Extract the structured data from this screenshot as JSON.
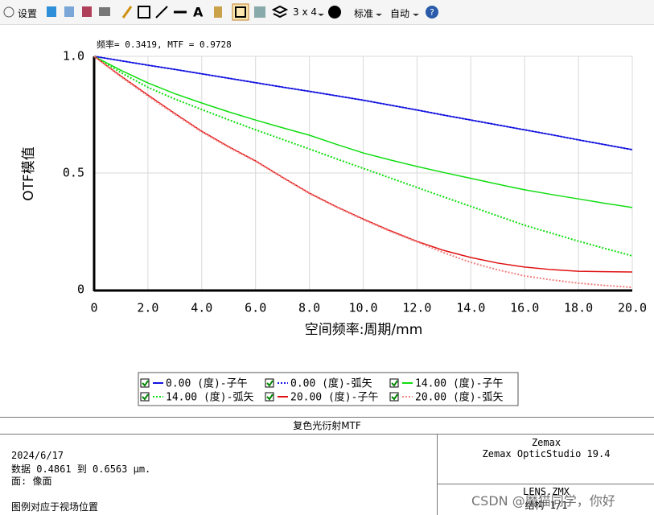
{
  "toolbar": {
    "settings": "设置",
    "layout": "3 x 4",
    "style": "标准",
    "scale": "自动"
  },
  "chart_data": {
    "type": "line",
    "annotation": "频率= 0.3419, MTF = 0.9728",
    "xlabel": "空间频率:周期/mm",
    "ylabel": "OTF模值",
    "xlim": [
      0,
      20
    ],
    "ylim": [
      0,
      1
    ],
    "xticks": [
      0,
      {
        "value": 2,
        "label": "2.0"
      },
      {
        "value": 4,
        "label": "4.0"
      },
      {
        "value": 6,
        "label": "6.0"
      },
      {
        "value": 8,
        "label": "8.0"
      },
      {
        "value": 10,
        "label": "10.0"
      },
      {
        "value": 12,
        "label": "12.0"
      },
      {
        "value": 14,
        "label": "14.0"
      },
      {
        "value": 16,
        "label": "16.0"
      },
      {
        "value": 18,
        "label": "18.0"
      },
      {
        "value": 20,
        "label": "20.0"
      }
    ],
    "yticks": [
      0,
      0.5,
      {
        "value": 1,
        "label": "1.0"
      }
    ],
    "grid": true,
    "x": [
      0,
      1,
      2,
      3,
      4,
      5,
      6,
      7,
      8,
      9,
      10,
      11,
      12,
      13,
      14,
      15,
      16,
      17,
      18,
      19,
      20
    ],
    "series": [
      {
        "name": "0.00 (度)-子午",
        "color": "#1414e0",
        "style": "solid",
        "values": [
          1.0,
          0.981,
          0.962,
          0.944,
          0.925,
          0.906,
          0.887,
          0.868,
          0.85,
          0.831,
          0.812,
          0.791,
          0.77,
          0.748,
          0.727,
          0.706,
          0.685,
          0.664,
          0.642,
          0.621,
          0.6
        ]
      },
      {
        "name": "0.00 (度)-弧矢",
        "color": "#1414e0",
        "style": "dotted",
        "values": [
          1.0,
          0.981,
          0.962,
          0.944,
          0.925,
          0.906,
          0.887,
          0.868,
          0.85,
          0.831,
          0.812,
          0.791,
          0.77,
          0.748,
          0.727,
          0.706,
          0.685,
          0.664,
          0.642,
          0.621,
          0.6
        ]
      },
      {
        "name": "14.00 (度)-子午",
        "color": "#10dd10",
        "style": "solid",
        "values": [
          1.0,
          0.94,
          0.886,
          0.84,
          0.8,
          0.762,
          0.727,
          0.694,
          0.662,
          0.623,
          0.586,
          0.556,
          0.528,
          0.502,
          0.477,
          0.452,
          0.428,
          0.408,
          0.389,
          0.37,
          0.352
        ]
      },
      {
        "name": "14.00 (度)-弧矢",
        "color": "#10dd10",
        "style": "dotted",
        "values": [
          1.0,
          0.93,
          0.867,
          0.817,
          0.772,
          0.728,
          0.685,
          0.644,
          0.603,
          0.561,
          0.52,
          0.479,
          0.438,
          0.397,
          0.357,
          0.316,
          0.276,
          0.242,
          0.208,
          0.176,
          0.145
        ]
      },
      {
        "name": "20.00 (度)-子午",
        "color": "#e01010",
        "style": "solid",
        "values": [
          1.0,
          0.915,
          0.834,
          0.755,
          0.679,
          0.613,
          0.552,
          0.482,
          0.414,
          0.356,
          0.303,
          0.253,
          0.207,
          0.168,
          0.138,
          0.114,
          0.097,
          0.086,
          0.079,
          0.077,
          0.076
        ]
      },
      {
        "name": "20.00 (度)-弧矢",
        "color": "#f08080",
        "style": "dotted",
        "values": [
          1.0,
          0.912,
          0.83,
          0.752,
          0.676,
          0.61,
          0.55,
          0.48,
          0.412,
          0.354,
          0.3,
          0.25,
          0.205,
          0.158,
          0.117,
          0.085,
          0.059,
          0.042,
          0.028,
          0.018,
          0.01
        ]
      }
    ]
  },
  "panel": {
    "title": "复色光衍射MTF",
    "left": [
      "2024/6/17",
      "数据 0.4861 到 0.6563 µm.",
      "面: 像面",
      "图例对应于视场位置"
    ],
    "right": [
      "Zemax",
      "Zemax OpticStudio 19.4",
      "LENS.ZMX",
      "结构 1/1"
    ]
  },
  "watermark": "CSDN @魔猫同学，你好"
}
